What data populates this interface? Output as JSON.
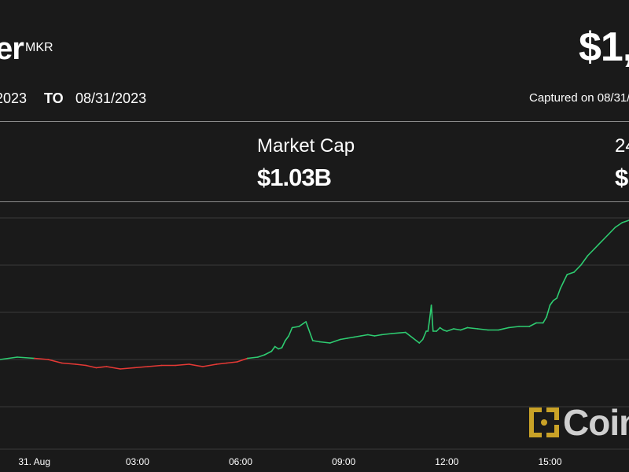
{
  "header": {
    "name_partial": "er",
    "ticker": "MKR",
    "price_partial": "$1,1",
    "from_date_partial": "2023",
    "to_label": "TO",
    "to_date": "08/31/2023",
    "captured_partial": "Captured on 08/31/"
  },
  "stats": {
    "market_cap_label": "Market Cap",
    "market_cap_value": "$1.03B",
    "volume_label_partial": "24",
    "volume_value_partial": "$"
  },
  "watermark": {
    "text_partial": "Coin"
  },
  "colors": {
    "up": "#2ecc71",
    "down": "#e53935",
    "grid": "#3a3a3a",
    "background": "#1a1a1a"
  },
  "chart_data": {
    "type": "line",
    "x_unit": "hours since 31 Aug 00:00",
    "xlim": [
      -1,
      17.3
    ],
    "x_ticks": [
      {
        "x": 0,
        "label": "31. Aug"
      },
      {
        "x": 3,
        "label": "03:00"
      },
      {
        "x": 6,
        "label": "06:00"
      },
      {
        "x": 9,
        "label": "09:00"
      },
      {
        "x": 12,
        "label": "12:00"
      },
      {
        "x": 15,
        "label": "15:00"
      }
    ],
    "y_unit": "relative price level",
    "ylim": [
      0,
      100
    ],
    "gridlines_y": [
      13,
      33,
      53,
      73,
      93
    ],
    "reference_y": 33.5,
    "series": [
      {
        "name": "",
        "x": [
          -1.0,
          -0.5,
          0.0,
          0.4,
          0.8,
          1.2,
          1.5,
          1.8,
          2.1,
          2.5,
          2.9,
          3.3,
          3.7,
          4.1,
          4.5,
          4.9,
          5.3,
          5.6,
          5.9,
          6.2,
          6.5,
          6.7,
          6.9,
          7.0,
          7.1,
          7.2,
          7.3,
          7.4,
          7.5,
          7.7,
          7.9,
          8.1,
          8.3,
          8.6,
          8.9,
          9.1,
          9.3,
          9.5,
          9.7,
          9.9,
          10.1,
          10.4,
          10.8,
          11.2,
          11.3,
          11.4,
          11.45,
          11.5,
          11.55,
          11.6,
          11.7,
          11.8,
          11.9,
          12.0,
          12.2,
          12.4,
          12.6,
          12.9,
          13.2,
          13.5,
          13.8,
          14.1,
          14.4,
          14.6,
          14.8,
          14.9,
          15.0,
          15.05,
          15.1,
          15.2,
          15.3,
          15.4,
          15.5,
          15.7,
          15.9,
          16.1,
          16.3,
          16.5,
          16.7,
          16.9,
          17.1,
          17.3
        ],
        "y": [
          33.0,
          34.0,
          33.5,
          33.0,
          31.5,
          31.0,
          30.5,
          29.5,
          30.0,
          29.0,
          29.5,
          30.0,
          30.5,
          30.5,
          31.0,
          30.0,
          31.0,
          31.5,
          32.0,
          33.5,
          34.0,
          35.0,
          36.5,
          38.5,
          37.5,
          38.0,
          41.0,
          43.0,
          46.5,
          47.0,
          49.0,
          41.0,
          40.5,
          40.0,
          41.5,
          42.0,
          42.5,
          43.0,
          43.5,
          43.0,
          43.5,
          44.0,
          44.5,
          40.0,
          41.5,
          45.0,
          45.0,
          50.0,
          56.0,
          45.0,
          45.0,
          46.5,
          45.5,
          45.0,
          46.0,
          45.5,
          46.5,
          46.0,
          45.5,
          45.5,
          46.5,
          47.0,
          47.0,
          48.5,
          48.5,
          51.0,
          56.0,
          57.0,
          58.0,
          59.0,
          63.0,
          66.0,
          69.0,
          70.0,
          73.0,
          77.0,
          80.0,
          83.0,
          86.0,
          89.0,
          91.0,
          92.0
        ]
      }
    ]
  }
}
